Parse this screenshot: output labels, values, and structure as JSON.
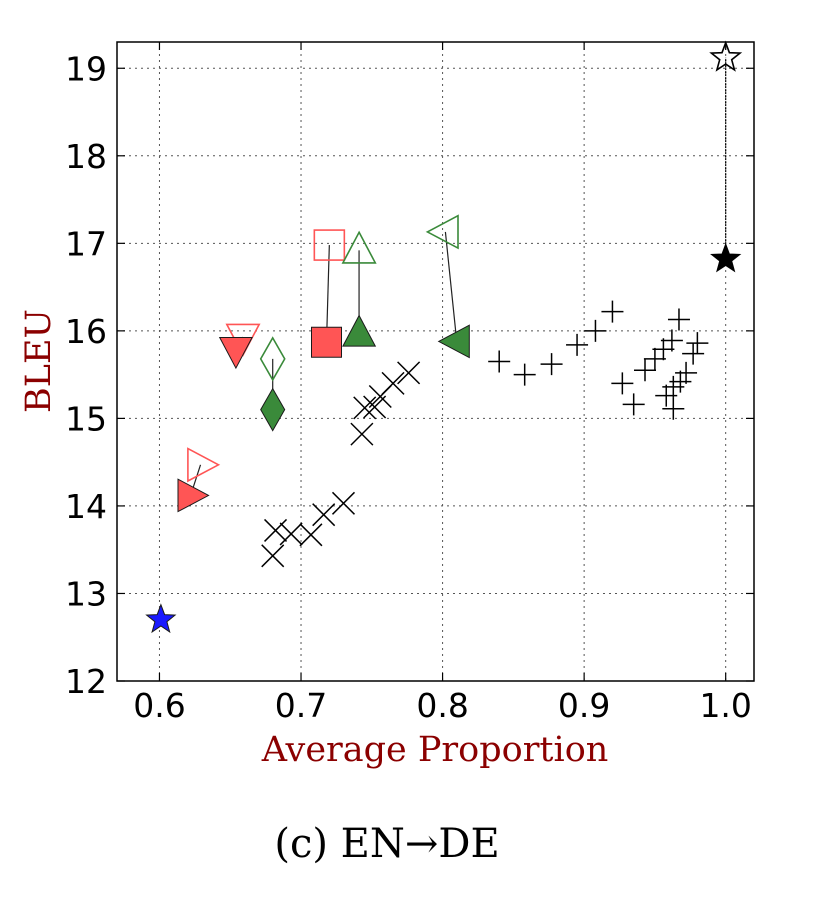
{
  "caption": "(c) EN→DE",
  "chart_data": {
    "type": "scatter",
    "title": "",
    "xlabel": "Average Proportion",
    "ylabel": "BLEU",
    "xlim": [
      0.57,
      1.02
    ],
    "ylim": [
      12,
      19.3
    ],
    "xticks": [
      0.6,
      0.7,
      0.8,
      0.9,
      1.0
    ],
    "xtick_labels": [
      "0.6",
      "0.7",
      "0.8",
      "0.9",
      "1.0"
    ],
    "yticks": [
      12,
      13,
      14,
      15,
      16,
      17,
      18,
      19
    ],
    "ytick_labels": [
      "12",
      "13",
      "14",
      "15",
      "16",
      "17",
      "18",
      "19"
    ],
    "grid": true,
    "colors": {
      "red": "#ff5555",
      "green": "#3a8a3a",
      "blue": "#1a1aff",
      "black": "#000000"
    },
    "paired_markers": [
      {
        "marker": "triangle-right",
        "color": "red",
        "x1": 0.622,
        "y1": 14.12,
        "x2": 0.629,
        "y2": 14.47
      },
      {
        "marker": "triangle-down",
        "color": "red",
        "x1": 0.654,
        "y1": 15.78,
        "x2": 0.659,
        "y2": 15.93
      },
      {
        "marker": "square",
        "color": "red",
        "x1": 0.718,
        "y1": 15.87,
        "x2": 0.72,
        "y2": 16.98
      },
      {
        "marker": "diamond",
        "color": "green",
        "x1": 0.68,
        "y1": 15.1,
        "x2": 0.68,
        "y2": 15.68
      },
      {
        "marker": "triangle-up",
        "color": "green",
        "x1": 0.741,
        "y1": 15.97,
        "x2": 0.741,
        "y2": 16.92
      },
      {
        "marker": "triangle-left",
        "color": "green",
        "x1": 0.81,
        "y1": 15.88,
        "x2": 0.802,
        "y2": 17.13
      },
      {
        "marker": "star",
        "color": "black",
        "x1": 1.0,
        "y1": 16.82,
        "x2": 1.0,
        "y2": 19.12
      }
    ],
    "single_markers": [
      {
        "marker": "star",
        "color": "blue",
        "x": 0.601,
        "y": 12.7
      }
    ],
    "x_series": [
      {
        "x": 0.68,
        "y": 13.43
      },
      {
        "x": 0.682,
        "y": 13.72
      },
      {
        "x": 0.693,
        "y": 13.68
      },
      {
        "x": 0.707,
        "y": 13.67
      },
      {
        "x": 0.716,
        "y": 13.9
      },
      {
        "x": 0.73,
        "y": 14.03
      },
      {
        "x": 0.743,
        "y": 14.82
      },
      {
        "x": 0.745,
        "y": 15.12
      },
      {
        "x": 0.752,
        "y": 15.13
      },
      {
        "x": 0.756,
        "y": 15.25
      },
      {
        "x": 0.765,
        "y": 15.4
      },
      {
        "x": 0.776,
        "y": 15.52
      }
    ],
    "plus_series": [
      {
        "x": 0.84,
        "y": 15.65
      },
      {
        "x": 0.858,
        "y": 15.5
      },
      {
        "x": 0.877,
        "y": 15.62
      },
      {
        "x": 0.895,
        "y": 15.84
      },
      {
        "x": 0.908,
        "y": 16.0
      },
      {
        "x": 0.92,
        "y": 16.22
      },
      {
        "x": 0.927,
        "y": 15.4
      },
      {
        "x": 0.935,
        "y": 15.16
      },
      {
        "x": 0.943,
        "y": 15.55
      },
      {
        "x": 0.95,
        "y": 15.68
      },
      {
        "x": 0.956,
        "y": 15.79
      },
      {
        "x": 0.958,
        "y": 15.26
      },
      {
        "x": 0.962,
        "y": 15.89
      },
      {
        "x": 0.963,
        "y": 15.11
      },
      {
        "x": 0.963,
        "y": 15.36
      },
      {
        "x": 0.967,
        "y": 16.13
      },
      {
        "x": 0.968,
        "y": 15.42
      },
      {
        "x": 0.972,
        "y": 15.52
      },
      {
        "x": 0.977,
        "y": 15.74
      },
      {
        "x": 0.98,
        "y": 15.86
      }
    ]
  }
}
